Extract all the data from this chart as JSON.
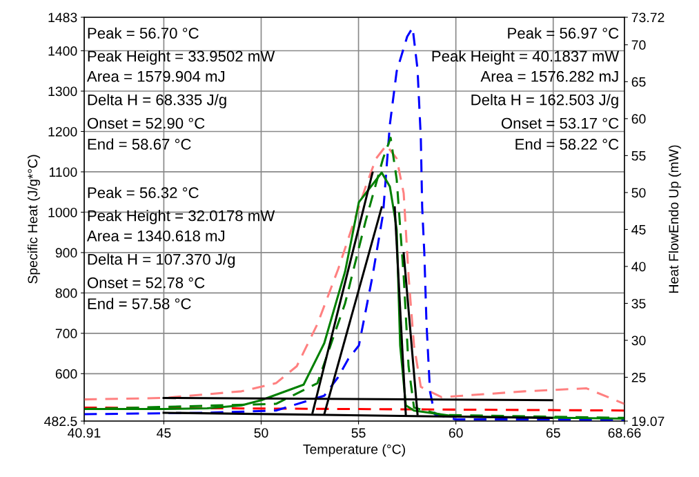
{
  "chart_data": {
    "type": "line",
    "xlabel": "Temperature (°C)",
    "ylabel": "Specific Heat (J/g*°C)",
    "y2label": "Heat FlowEndo Up (mW)",
    "xlim": [
      40.91,
      68.66
    ],
    "xticks": [
      40.91,
      45,
      50,
      55,
      60,
      65,
      68.66
    ],
    "ylim": [
      482.5,
      1483
    ],
    "yticks": [
      482.5,
      600,
      700,
      800,
      900,
      1000,
      1100,
      1200,
      1300,
      1400,
      1483
    ],
    "y2lim": [
      19.07,
      73.72
    ],
    "y2ticks": [
      19.07,
      25,
      30,
      35,
      40,
      45,
      50,
      55,
      60,
      65,
      70,
      73.72
    ],
    "grid": true,
    "marker": "none",
    "series": [
      {
        "axis": "y2",
        "color": "#ff8080",
        "line_style": "dashed",
        "x": [
          40.91,
          45,
          48.99,
          50.76,
          51.83,
          52.89,
          53.95,
          54.66,
          55.37,
          55.9,
          56.43,
          56.96,
          57.32,
          57.57,
          57.85,
          58.2,
          59.27,
          63.52,
          66.71,
          68.66
        ],
        "values": [
          22.0,
          22.2,
          23.1,
          24.2,
          26.5,
          32.2,
          39.6,
          45.2,
          50.8,
          54.6,
          56.4,
          54.6,
          49.9,
          38.7,
          29.3,
          23.7,
          22.3,
          23.1,
          23.5,
          21.4
        ]
      },
      {
        "axis": "y2",
        "color": "#ff0000",
        "line_style": "dashed",
        "x": [
          40.91,
          68.66
        ],
        "values": [
          20.9,
          20.5
        ]
      },
      {
        "axis": "y2",
        "color": "#0000ff",
        "line_style": "dashed",
        "x": [
          40.91,
          47.22,
          50.76,
          53.24,
          53.95,
          54.48,
          55.02,
          55.72,
          56.26,
          56.61,
          56.96,
          57.5,
          57.78,
          58.03,
          58.2,
          58.27,
          58.38,
          58.49,
          58.67,
          58.91,
          59.98,
          64.94,
          68.66
        ],
        "values": [
          20.0,
          20.2,
          20.5,
          22.5,
          25.0,
          27.5,
          29.3,
          38.7,
          47.1,
          59.2,
          66.4,
          71.1,
          72.3,
          66.7,
          57.4,
          48.0,
          41.8,
          32.4,
          23.1,
          20.0,
          19.3,
          19.3,
          19.2
        ]
      },
      {
        "axis": "y2",
        "color": "#008000",
        "line_style": "dashed",
        "x": [
          40.91,
          50.76,
          52.89,
          54.31,
          55.37,
          56.26,
          56.65,
          56.96,
          57.32,
          57.57,
          57.85,
          59.27,
          68.66
        ],
        "values": [
          20.7,
          21.4,
          24.2,
          35.0,
          46.2,
          54.6,
          57.4,
          51.8,
          38.7,
          26.5,
          20.9,
          19.9,
          19.5
        ]
      },
      {
        "axis": "y2",
        "color": "#008000",
        "line_style": "solid",
        "x": [
          40.91,
          44.99,
          47.22,
          48.99,
          50,
          52.18,
          53.24,
          54.31,
          55.02,
          56.19,
          56.61,
          56.86,
          56.96,
          57.14,
          57.43,
          57.85,
          59.98,
          68.66
        ],
        "values": [
          20.7,
          20.7,
          20.8,
          21.2,
          21.9,
          24.0,
          29.6,
          39.3,
          48.7,
          52.7,
          50.8,
          46.8,
          45.0,
          29.3,
          21.2,
          20.5,
          19.7,
          19.4
        ]
      },
      {
        "axis": "y2",
        "color": "#000000",
        "line_style": "solid",
        "x": [
          44.99,
          64.94
        ],
        "values": [
          22.2,
          21.9
        ]
      },
      {
        "axis": "y2",
        "color": "#000000",
        "line_style": "solid",
        "x": [
          44.99,
          64.94
        ],
        "values": [
          20.2,
          19.5
        ]
      },
      {
        "axis": "y2",
        "color": "#000000",
        "line_style": "solid",
        "x": [
          52.64,
          55.72
        ],
        "values": [
          20.2,
          52.7
        ]
      },
      {
        "axis": "y2",
        "color": "#000000",
        "line_style": "solid",
        "x": [
          53.24,
          56.19
        ],
        "values": [
          20.0,
          48.0
        ]
      },
      {
        "axis": "y2",
        "color": "#000000",
        "line_style": "solid",
        "x": [
          56.86,
          57.43
        ],
        "values": [
          48.0,
          19.9
        ]
      },
      {
        "axis": "y2",
        "color": "#000000",
        "line_style": "solid",
        "x": [
          57.32,
          58.03
        ],
        "values": [
          41.8,
          20.0
        ]
      }
    ],
    "annotations": [
      "Peak = 56.70 °C",
      "Peak Height = 33.9502 mW",
      "Area = 1579.904 mJ",
      "Delta H = 68.335 J/g",
      "Onset = 52.90 °C",
      "End = 58.67 °C",
      "Peak = 56.97 °C",
      "Peak Height = 40.1837 mW",
      "Area = 1576.282 mJ",
      "Delta H = 162.503 J/g",
      "Onset = 53.17 °C",
      "End = 58.22 °C",
      "Peak = 56.32 °C",
      "Peak Height = 32.0178 mW",
      "Area = 1340.618 mJ",
      "Delta H = 107.370 J/g",
      "Onset = 52.78 °C",
      "End = 57.58 °C"
    ]
  }
}
